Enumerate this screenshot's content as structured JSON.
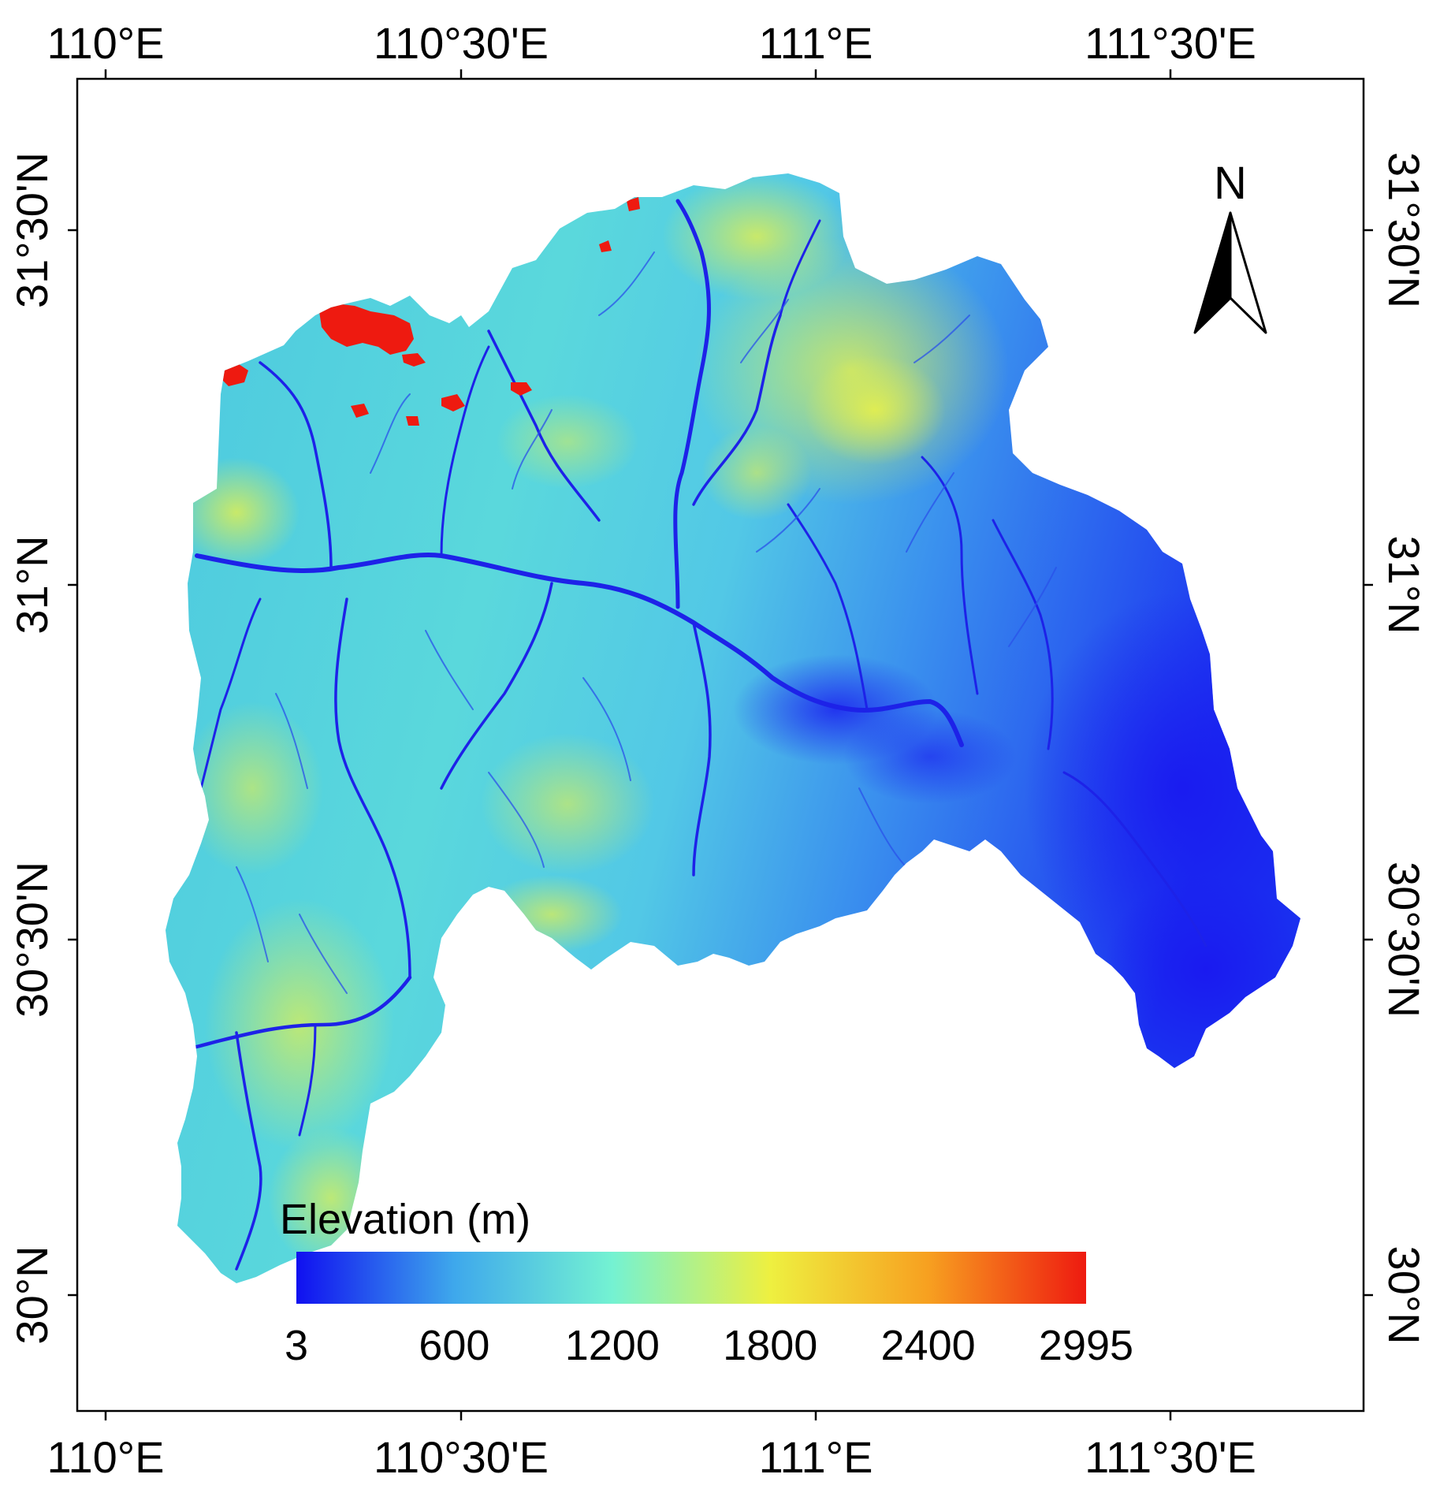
{
  "axes": {
    "top": [
      "110°E",
      "110°30'E",
      "111°E",
      "111°30'E"
    ],
    "bottom": [
      "110°E",
      "110°30'E",
      "111°E",
      "111°30'E"
    ],
    "left": [
      "31°30'N",
      "31°N",
      "30°30'N",
      "30°N"
    ],
    "right": [
      "31°30'N",
      "31°N",
      "30°30'N",
      "30°N"
    ]
  },
  "north_arrow": {
    "label": "N"
  },
  "legend": {
    "title": "Elevation (m)",
    "min": 3,
    "max": 2995,
    "ticks": [
      "3",
      "600",
      "1200",
      "1800",
      "2400",
      "2995"
    ],
    "colors": [
      "#1010f0",
      "#3ea8ec",
      "#74f2d2",
      "#eef040",
      "#f7a020",
      "#ee1a10"
    ]
  },
  "colors": {
    "low": "#1a1af0",
    "mid_low": "#3ca8ec",
    "mid": "#72e8cc",
    "mid_high": "#e8f048",
    "high": "#ee1a10"
  }
}
